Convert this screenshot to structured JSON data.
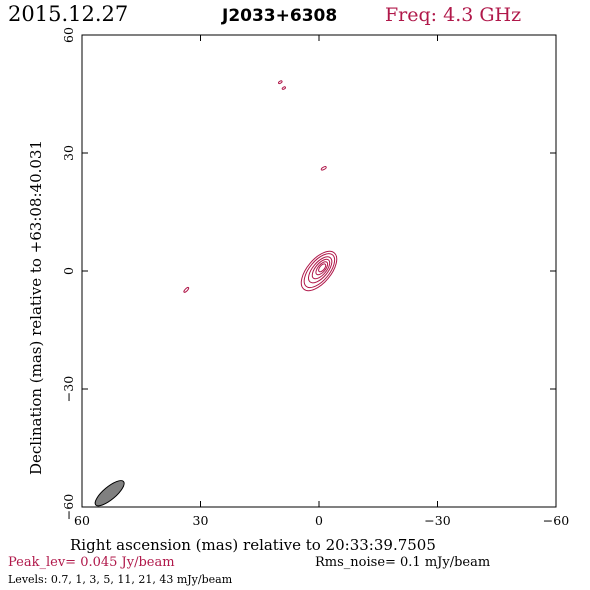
{
  "header": {
    "date": "2015.12.27",
    "source": "J2033+6308",
    "freq_label": "Freq: 4.3 GHz"
  },
  "footer": {
    "peak": "Peak_lev=  0.045 Jy/beam",
    "rms": "Rms_noise=   0.1 mJy/beam",
    "levels": "Levels: 0.7,    1,    3,    5,   11,   21,   43 mJy/beam"
  },
  "colors": {
    "contour": "#b0184a",
    "beam_fill": "#808080",
    "axis": "#000000"
  },
  "chart_data": {
    "type": "contour",
    "xlabel": "Right ascension (mas) relative to 20:33:39.7505",
    "ylabel": "Declination (mas) relative to +63:08:40.031",
    "xlim": [
      60,
      -60
    ],
    "ylim": [
      -60,
      60
    ],
    "x_ticks": [
      60,
      30,
      0,
      -30,
      -60
    ],
    "y_ticks": [
      60,
      30,
      0,
      -30,
      -60
    ],
    "x_tick_labels": [
      "60",
      "30",
      "0",
      "−30",
      "−60"
    ],
    "y_tick_labels": [
      "60",
      "30",
      "0",
      "−30",
      "−60"
    ],
    "contour_levels_mJy_per_beam": [
      0.7,
      1,
      3,
      5,
      11,
      21,
      43
    ],
    "core_contours": [
      {
        "level": 0.7,
        "cx": 0.0,
        "cy": 0.0,
        "rx": 6.0,
        "ry": 3.0,
        "angle": -50
      },
      {
        "level": 1,
        "cx": -0.1,
        "cy": 0.1,
        "rx": 5.2,
        "ry": 2.5,
        "angle": -50
      },
      {
        "level": 3,
        "cx": -0.3,
        "cy": 0.3,
        "rx": 4.0,
        "ry": 1.9,
        "angle": -50
      },
      {
        "level": 5,
        "cx": -0.5,
        "cy": 0.5,
        "rx": 3.0,
        "ry": 1.4,
        "angle": -50
      },
      {
        "level": 11,
        "cx": -0.7,
        "cy": 0.7,
        "rx": 2.0,
        "ry": 0.95,
        "angle": -50
      },
      {
        "level": 21,
        "cx": -0.8,
        "cy": 0.8,
        "rx": 1.2,
        "ry": 0.6,
        "angle": -50
      }
    ],
    "isolated_components": [
      {
        "level": 0.7,
        "cx": 9.8,
        "cy": 48.0,
        "rx": 0.5,
        "ry": 0.25,
        "angle": -30
      },
      {
        "level": 0.7,
        "cx": 8.9,
        "cy": 46.5,
        "rx": 0.45,
        "ry": 0.25,
        "angle": -30
      },
      {
        "level": 0.7,
        "cx": -1.2,
        "cy": 26.1,
        "rx": 0.7,
        "ry": 0.3,
        "angle": -30
      },
      {
        "level": 0.7,
        "cx": 33.6,
        "cy": -4.8,
        "rx": 0.8,
        "ry": 0.3,
        "angle": -45
      }
    ],
    "beam": {
      "cx": 53.0,
      "cy": -56.5,
      "major_mas": 4.6,
      "minor_mas": 1.6,
      "pa_deg": -40
    }
  }
}
